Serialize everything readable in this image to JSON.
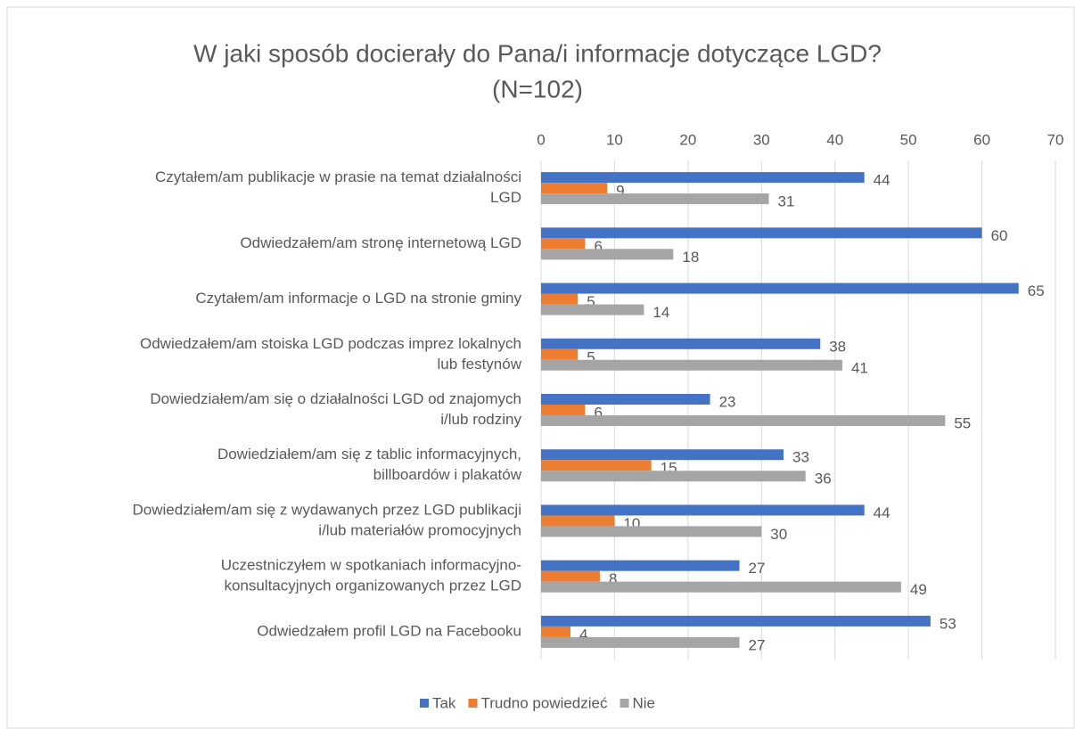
{
  "chart_data": {
    "type": "bar",
    "orientation": "horizontal",
    "title": [
      "W jaki sposób docierały do Pana/i informacje dotyczące LGD?",
      "(N=102)"
    ],
    "categories": [
      [
        "Czytałem/am publikacje w prasie na temat działalności",
        "LGD"
      ],
      [
        "Odwiedzałem/am stronę internetową LGD"
      ],
      [
        "Czytałem/am informacje o LGD na stronie gminy"
      ],
      [
        "Odwiedzałem/am stoiska LGD podczas imprez lokalnych",
        "lub festynów"
      ],
      [
        "Dowiedziałem/am się o działalności LGD od znajomych",
        "i/lub rodziny"
      ],
      [
        "Dowiedziałem/am się z tablic informacyjnych,",
        "billboardów i plakatów"
      ],
      [
        "Dowiedziałem/am się z wydawanych przez LGD publikacji",
        "i/lub materiałów promocyjnych"
      ],
      [
        "Uczestniczyłem w spotkaniach informacyjno-",
        "konsultacyjnych organizowanych przez LGD"
      ],
      [
        "Odwiedzałem profil LGD na Facebooku"
      ]
    ],
    "series": [
      {
        "name": "Tak",
        "color": "#4472c4",
        "values": [
          44,
          60,
          65,
          38,
          23,
          33,
          44,
          27,
          53
        ]
      },
      {
        "name": "Trudno powiedzieć",
        "color": "#ed7d31",
        "values": [
          9,
          6,
          5,
          5,
          6,
          15,
          10,
          8,
          4
        ]
      },
      {
        "name": "Nie",
        "color": "#a5a5a5",
        "values": [
          31,
          18,
          14,
          41,
          55,
          36,
          30,
          49,
          27
        ]
      }
    ],
    "xlim": [
      0,
      70
    ],
    "xticks": [
      0,
      10,
      20,
      30,
      40,
      50,
      60,
      70
    ],
    "grid": true,
    "legend": "bottom"
  }
}
